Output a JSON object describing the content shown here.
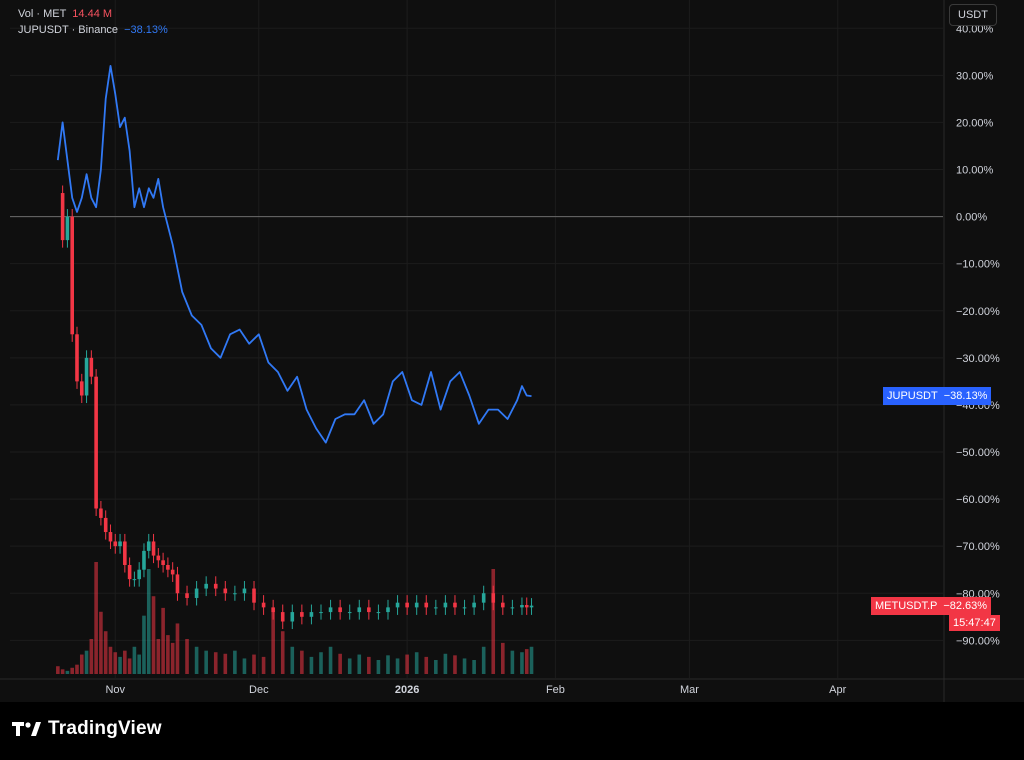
{
  "legend": {
    "vol": {
      "label": "Vol · MET",
      "value": "14.44 M",
      "color": "#f7525f"
    },
    "jup": {
      "label": "JUPUSDT · Binance",
      "value": "−38.13%",
      "color": "#3179f5"
    }
  },
  "unit_button": "USDT",
  "tags": {
    "jup_name": "JUPUSDT",
    "jup_value": "−38.13%",
    "met_name": "METUSDT.P",
    "met_value": "−82.63%",
    "met_time": "15:47:47"
  },
  "brand": "TradingView",
  "chart_data": {
    "type": "line",
    "y_axis": {
      "ticks": [
        "40.00%",
        "30.00%",
        "20.00%",
        "10.00%",
        "0.00%",
        "−10.00%",
        "−20.00%",
        "−30.00%",
        "−40.00%",
        "−50.00%",
        "−60.00%",
        "−70.00%",
        "−80.00%",
        "−90.00%"
      ],
      "tick_values": [
        40,
        30,
        20,
        10,
        0,
        -10,
        -20,
        -30,
        -40,
        -50,
        -60,
        -70,
        -80,
        -90
      ],
      "ylim": [
        -98,
        46
      ]
    },
    "x_axis": {
      "ticks": [
        {
          "label": "Nov",
          "bold": false,
          "date": "2025-11-01"
        },
        {
          "label": "Dec",
          "bold": false,
          "date": "2025-12-01"
        },
        {
          "label": "2026",
          "bold": true,
          "date": "2026-01-01"
        },
        {
          "label": "Feb",
          "bold": false,
          "date": "2026-02-01"
        },
        {
          "label": "Mar",
          "bold": false,
          "date": "2026-03-01"
        },
        {
          "label": "Apr",
          "bold": false,
          "date": "2026-04-01"
        }
      ],
      "xlim": [
        "2025-10-10",
        "2026-04-23"
      ]
    },
    "zero_line": 0,
    "colors": {
      "up": "#26a69a",
      "down": "#f23645",
      "jup": "#3179f5"
    },
    "series": [
      {
        "name": "JUPUSDT",
        "style": "line",
        "x": [
          "2025-10-20",
          "2025-10-21",
          "2025-10-22",
          "2025-10-23",
          "2025-10-24",
          "2025-10-25",
          "2025-10-26",
          "2025-10-27",
          "2025-10-28",
          "2025-10-29",
          "2025-10-30",
          "2025-10-31",
          "2025-11-01",
          "2025-11-02",
          "2025-11-03",
          "2025-11-04",
          "2025-11-05",
          "2025-11-06",
          "2025-11-07",
          "2025-11-08",
          "2025-11-09",
          "2025-11-10",
          "2025-11-11",
          "2025-11-12",
          "2025-11-13",
          "2025-11-15",
          "2025-11-17",
          "2025-11-19",
          "2025-11-21",
          "2025-11-23",
          "2025-11-25",
          "2025-11-27",
          "2025-11-29",
          "2025-12-01",
          "2025-12-03",
          "2025-12-05",
          "2025-12-07",
          "2025-12-09",
          "2025-12-11",
          "2025-12-13",
          "2025-12-15",
          "2025-12-17",
          "2025-12-19",
          "2025-12-21",
          "2025-12-23",
          "2025-12-25",
          "2025-12-27",
          "2025-12-29",
          "2025-12-31",
          "2026-01-02",
          "2026-01-04",
          "2026-01-06",
          "2026-01-08",
          "2026-01-10",
          "2026-01-12",
          "2026-01-14",
          "2026-01-16",
          "2026-01-18",
          "2026-01-20",
          "2026-01-22",
          "2026-01-24",
          "2026-01-25",
          "2026-01-26",
          "2026-01-27"
        ],
        "values": [
          12,
          20,
          12,
          4,
          1,
          4,
          9,
          4,
          2,
          10,
          25,
          32,
          26,
          19,
          21,
          14,
          2,
          6,
          2,
          6,
          4,
          8,
          2,
          -2,
          -6,
          -16,
          -21,
          -23,
          -28,
          -30,
          -25,
          -24,
          -27,
          -25,
          -31,
          -33,
          -37,
          -34,
          -41,
          -45,
          -48,
          -43,
          -42,
          -42,
          -39,
          -44,
          -42,
          -35,
          -33,
          -39,
          -40,
          -33,
          -41,
          -35,
          -33,
          -38,
          -44,
          -41,
          -41,
          -43,
          -39,
          -36,
          -38,
          -38.13
        ]
      },
      {
        "name": "METUSDT.P",
        "style": "candles",
        "x": [
          "2025-10-20",
          "2025-10-21",
          "2025-10-22",
          "2025-10-23",
          "2025-10-24",
          "2025-10-25",
          "2025-10-26",
          "2025-10-27",
          "2025-10-28",
          "2025-10-29",
          "2025-10-30",
          "2025-10-31",
          "2025-11-01",
          "2025-11-02",
          "2025-11-03",
          "2025-11-04",
          "2025-11-05",
          "2025-11-06",
          "2025-11-07",
          "2025-11-08",
          "2025-11-09",
          "2025-11-10",
          "2025-11-11",
          "2025-11-12",
          "2025-11-13",
          "2025-11-14",
          "2025-11-16",
          "2025-11-18",
          "2025-11-20",
          "2025-11-22",
          "2025-11-24",
          "2025-11-26",
          "2025-11-28",
          "2025-11-30",
          "2025-12-02",
          "2025-12-04",
          "2025-12-06",
          "2025-12-08",
          "2025-12-10",
          "2025-12-12",
          "2025-12-14",
          "2025-12-16",
          "2025-12-18",
          "2025-12-20",
          "2025-12-22",
          "2025-12-24",
          "2025-12-26",
          "2025-12-28",
          "2025-12-30",
          "2026-01-01",
          "2026-01-03",
          "2026-01-05",
          "2026-01-07",
          "2026-01-09",
          "2026-01-11",
          "2026-01-13",
          "2026-01-15",
          "2026-01-17",
          "2026-01-19",
          "2026-01-21",
          "2026-01-23",
          "2026-01-25",
          "2026-01-26",
          "2026-01-27"
        ],
        "values": [
          5,
          -5,
          0,
          -25,
          -35,
          -38,
          -30,
          -34,
          -62,
          -64,
          -67,
          -69,
          -70,
          -69,
          -74,
          -77,
          -77,
          -75,
          -71,
          -69,
          -72,
          -73,
          -74,
          -75,
          -76,
          -80,
          -81,
          -79,
          -78,
          -79,
          -80,
          -80,
          -79,
          -82,
          -83,
          -84,
          -86,
          -84,
          -85,
          -84,
          -84,
          -83,
          -84,
          -84,
          -83,
          -84,
          -84,
          -83,
          -82,
          -83,
          -82,
          -83,
          -83,
          -82,
          -83,
          -83,
          -82,
          -80,
          -82,
          -83,
          -83,
          -82.5,
          -83,
          -82.63
        ]
      },
      {
        "name": "Vol · MET",
        "style": "volume",
        "x": [
          "2025-10-20",
          "2025-10-21",
          "2025-10-22",
          "2025-10-23",
          "2025-10-24",
          "2025-10-25",
          "2025-10-26",
          "2025-10-27",
          "2025-10-28",
          "2025-10-29",
          "2025-10-30",
          "2025-10-31",
          "2025-11-01",
          "2025-11-02",
          "2025-11-03",
          "2025-11-04",
          "2025-11-05",
          "2025-11-06",
          "2025-11-07",
          "2025-11-08",
          "2025-11-09",
          "2025-11-10",
          "2025-11-11",
          "2025-11-12",
          "2025-11-13",
          "2025-11-14",
          "2025-11-16",
          "2025-11-18",
          "2025-11-20",
          "2025-11-22",
          "2025-11-24",
          "2025-11-26",
          "2025-11-28",
          "2025-11-30",
          "2025-12-02",
          "2025-12-04",
          "2025-12-06",
          "2025-12-08",
          "2025-12-10",
          "2025-12-12",
          "2025-12-14",
          "2025-12-16",
          "2025-12-18",
          "2025-12-20",
          "2025-12-22",
          "2025-12-24",
          "2025-12-26",
          "2025-12-28",
          "2025-12-30",
          "2026-01-01",
          "2026-01-03",
          "2026-01-05",
          "2026-01-07",
          "2026-01-09",
          "2026-01-11",
          "2026-01-13",
          "2026-01-15",
          "2026-01-17",
          "2026-01-19",
          "2026-01-21",
          "2026-01-23",
          "2026-01-25",
          "2026-01-26",
          "2026-01-27"
        ],
        "values": [
          1,
          0.6,
          0.4,
          0.8,
          1.2,
          2.5,
          3.0,
          4.5,
          14.4,
          8.0,
          5.5,
          3.5,
          2.8,
          2.2,
          3.0,
          2.0,
          3.5,
          2.5,
          7.5,
          13.5,
          10.0,
          4.5,
          8.5,
          5.0,
          4.0,
          6.5,
          4.5,
          3.5,
          3.0,
          2.8,
          2.6,
          3.0,
          2.0,
          2.5,
          2.2,
          8.0,
          5.5,
          3.5,
          3.0,
          2.2,
          2.8,
          3.5,
          2.6,
          2.0,
          2.5,
          2.2,
          1.8,
          2.4,
          2.0,
          2.5,
          2.8,
          2.2,
          1.8,
          2.6,
          2.4,
          2.0,
          1.8,
          3.5,
          13.5,
          4.0,
          3.0,
          2.8,
          3.2,
          3.5
        ]
      }
    ]
  }
}
